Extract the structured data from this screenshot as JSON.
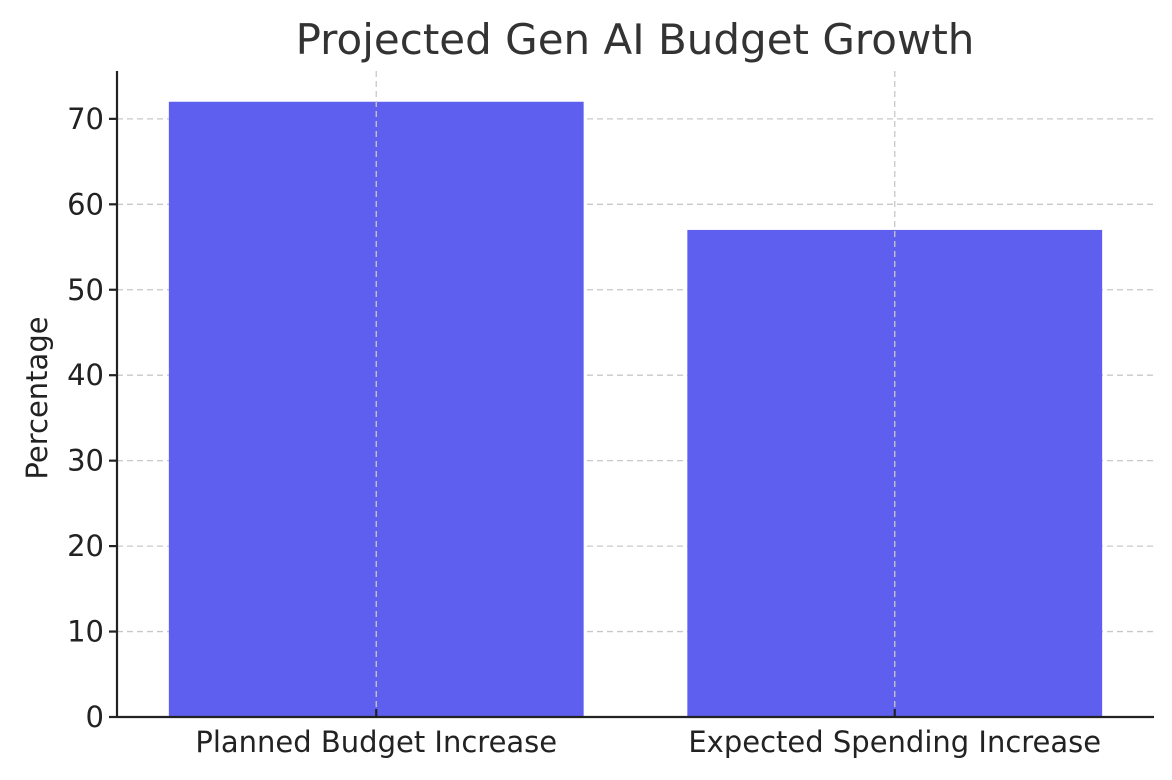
{
  "chart_data": {
    "type": "bar",
    "title": "Projected Gen AI Budget Growth",
    "xlabel": "",
    "ylabel": "Percentage",
    "categories": [
      "Planned Budget Increase",
      "Expected Spending Increase"
    ],
    "values": [
      72,
      57
    ],
    "ylim": [
      0,
      75.6
    ],
    "yticks": [
      0,
      10,
      20,
      30,
      40,
      50,
      60,
      70
    ],
    "grid": true,
    "bar_color": "#5f5fef",
    "legend": "none"
  }
}
